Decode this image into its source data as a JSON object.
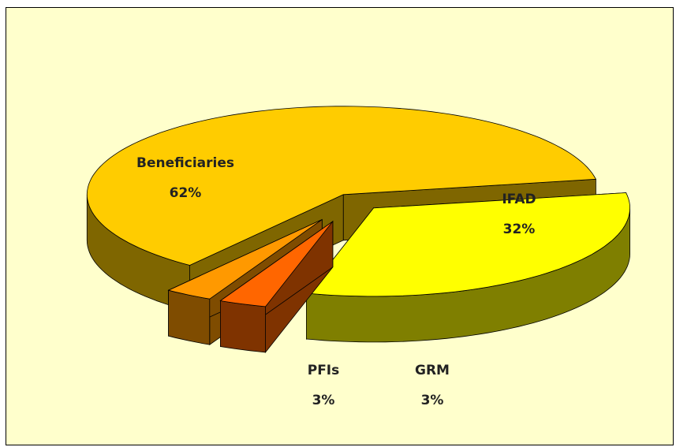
{
  "chart_data": {
    "type": "pie",
    "categories": [
      "IFAD",
      "GRM",
      "PFIs",
      "Beneficiaries"
    ],
    "values": [
      32,
      3,
      3,
      62
    ],
    "value_labels": [
      "32%",
      "3%",
      "3%",
      "62%"
    ],
    "colors": [
      "#FFFF00",
      "#FF6600",
      "#FF9900",
      "#FFCC00"
    ],
    "three_d": true,
    "exploded": true
  }
}
